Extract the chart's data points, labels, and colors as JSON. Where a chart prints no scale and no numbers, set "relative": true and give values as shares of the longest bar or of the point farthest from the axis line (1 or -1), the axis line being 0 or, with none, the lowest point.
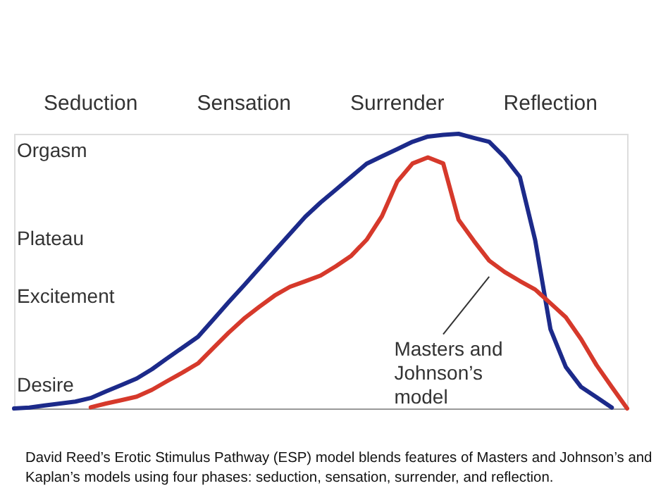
{
  "chart_data": {
    "type": "line",
    "relative": true,
    "marker": "none",
    "line_style": "solid",
    "categories": [
      null,
      null,
      null,
      null,
      null,
      null,
      null,
      null,
      null,
      null,
      null,
      null,
      null,
      null,
      null,
      null,
      null,
      null,
      null,
      null,
      null,
      null,
      null,
      null,
      null,
      null,
      null,
      null,
      null,
      null,
      null,
      null,
      null,
      null,
      null,
      null,
      null,
      null,
      null,
      null,
      null
    ],
    "series": [
      {
        "color": "#1c2a8a",
        "values": [
          0,
          0.003,
          0.011,
          0.018,
          0.025,
          0.038,
          0.062,
          0.085,
          0.109,
          0.143,
          0.183,
          0.222,
          0.261,
          0.324,
          0.387,
          0.448,
          0.511,
          0.574,
          0.636,
          0.698,
          0.75,
          0.797,
          0.844,
          0.891,
          0.918,
          0.944,
          0.971,
          0.99,
          0.996,
          1,
          0.985,
          0.971,
          0.915,
          0.843,
          0.613,
          0.288,
          0.151,
          0.078,
          0.041,
          0.003,
          null
        ]
      },
      {
        "color": "#d6392b",
        "values": [
          null,
          null,
          null,
          null,
          null,
          0.004,
          0.018,
          0.03,
          0.043,
          0.068,
          0.1,
          0.131,
          0.164,
          0.22,
          0.276,
          0.327,
          0.37,
          0.411,
          0.443,
          0.463,
          0.484,
          0.518,
          0.556,
          0.614,
          0.7,
          0.826,
          0.892,
          0.914,
          0.892,
          0.687,
          0.61,
          0.538,
          0.497,
          0.464,
          0.433,
          0.383,
          0.332,
          0.252,
          0.158,
          0.078,
          0
        ]
      }
    ],
    "annotations": [
      "Seduction",
      "Sensation",
      "Surrender",
      "Reflection",
      "Desire",
      "Excitement",
      "Plateau",
      "Orgasm",
      "Masters and\nJohnson’s\nmodel",
      "David Reed’s Erotic Stimulus Pathway (ESP) model blends features of Masters and Johnson’s and\nKaplan’s models using four phases: seduction, sensation, surrender, and reflection."
    ]
  }
}
